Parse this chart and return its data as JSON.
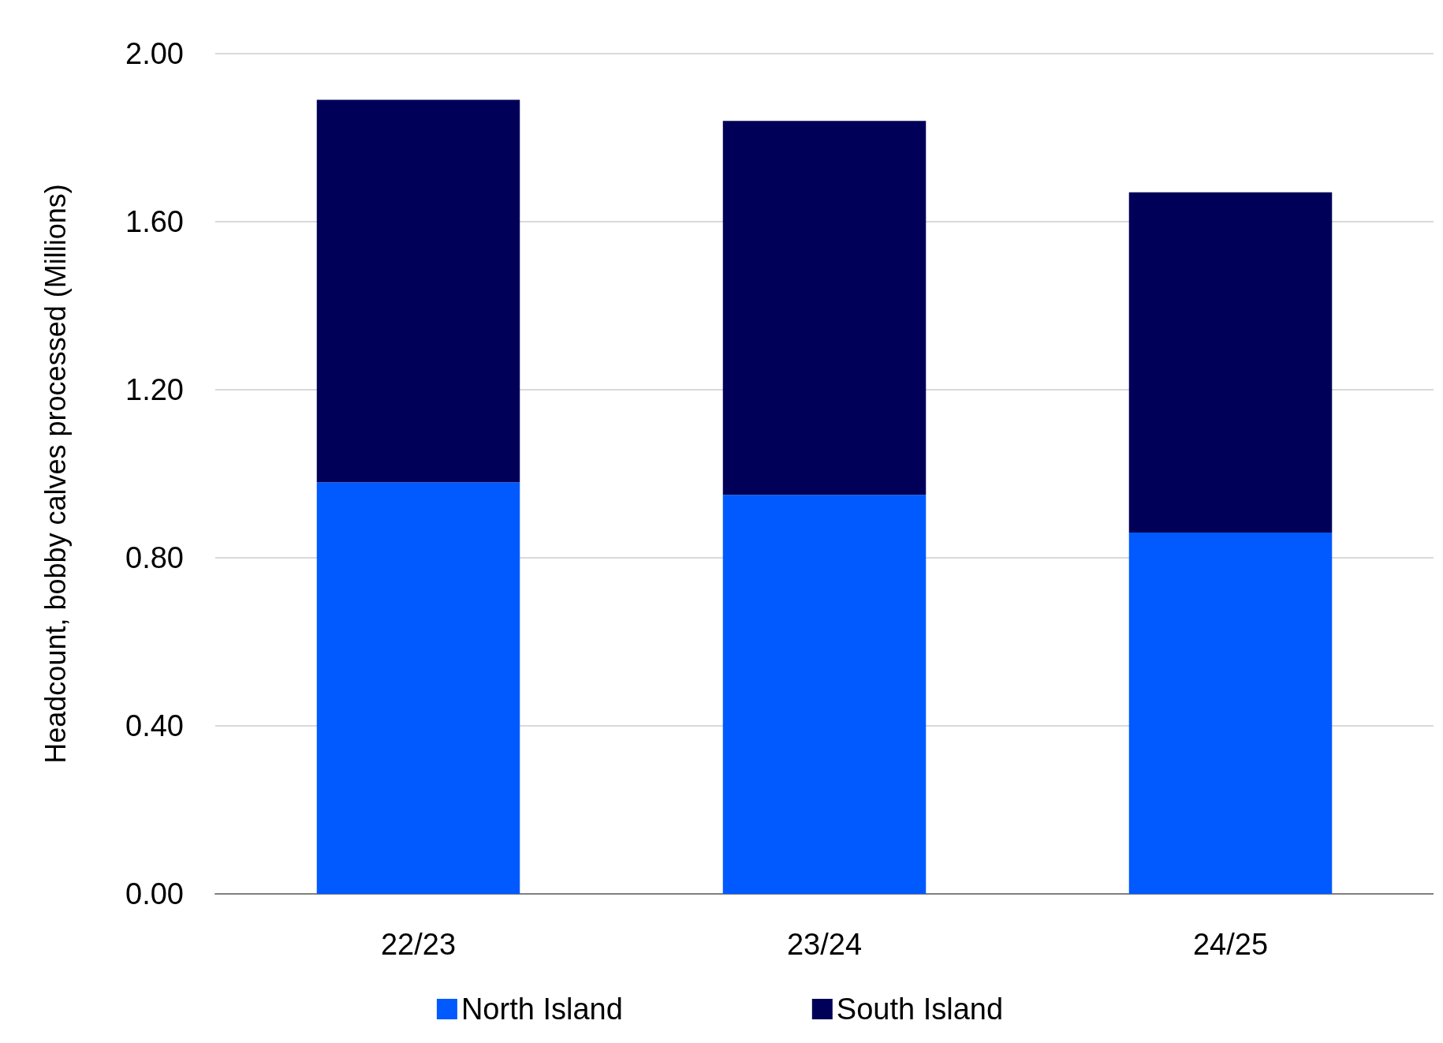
{
  "chart_data": {
    "type": "bar",
    "stacked": true,
    "ylabel": "Headcount, bobby calves processed (Millions)",
    "categories": [
      "22/23",
      "23/24",
      "24/25"
    ],
    "series": [
      {
        "name": "North Island",
        "color": "#005aff",
        "values": [
          0.98,
          0.95,
          0.86
        ]
      },
      {
        "name": "South Island",
        "color": "#000058",
        "values": [
          0.91,
          0.89,
          0.81
        ]
      }
    ],
    "ylim": [
      0,
      2
    ],
    "yticks": [
      {
        "value": 0,
        "label": "0.00"
      },
      {
        "value": 0.4,
        "label": "0.40"
      },
      {
        "value": 0.8,
        "label": "0.80"
      },
      {
        "value": 1.2,
        "label": "1.20"
      },
      {
        "value": 1.6,
        "label": "1.60"
      },
      {
        "value": 2,
        "label": "2.00"
      }
    ],
    "grid": "y",
    "legend": "bottom"
  }
}
